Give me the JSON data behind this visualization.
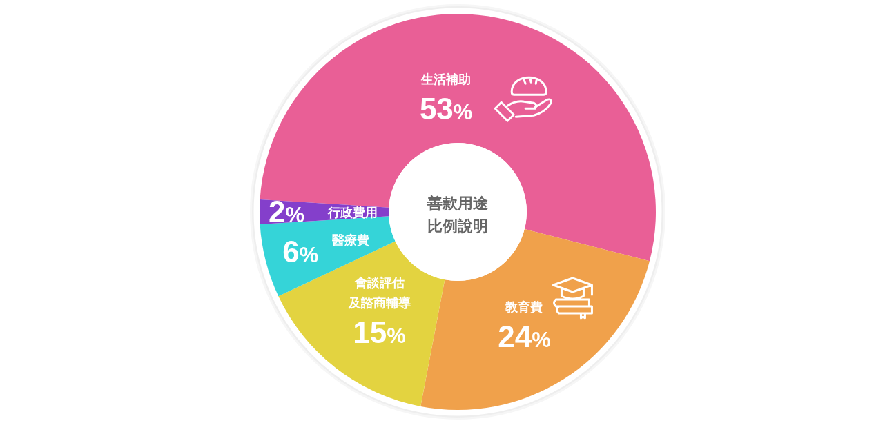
{
  "chart_data": {
    "type": "donut",
    "title": "善款用途比例說明",
    "categories": [
      "生活補助",
      "教育費",
      "會談評估及諮商輔導",
      "醫療費",
      "行政費用"
    ],
    "values": [
      53,
      24,
      15,
      6,
      2
    ],
    "colors": [
      "#e95f96",
      "#f0a14b",
      "#e3d340",
      "#35d4d8",
      "#843fcb"
    ],
    "value_labels": [
      "53%",
      "24%",
      "15%",
      "6%",
      "2%"
    ]
  }
}
